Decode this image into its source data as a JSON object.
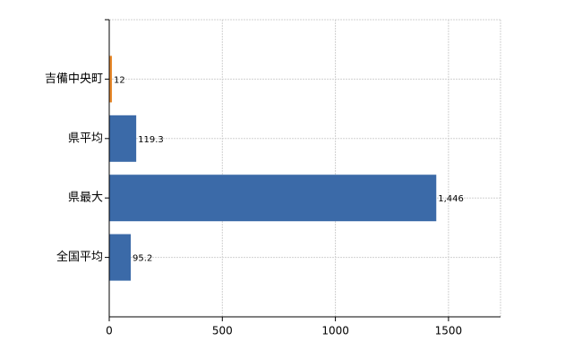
{
  "chart_data": {
    "type": "barh",
    "categories": [
      "吉備中央町",
      "県平均",
      "県最大",
      "全国平均"
    ],
    "values": [
      12,
      119.3,
      1446,
      95.2
    ],
    "value_labels": [
      "12",
      "119.3",
      "1,446",
      "95.2"
    ],
    "colors": [
      "#e8892b",
      "#3b6aa8",
      "#3b6aa8",
      "#3b6aa8"
    ],
    "xlim": [
      0,
      1730
    ],
    "xticks": [
      0,
      500,
      1000,
      1500
    ],
    "grid": true
  }
}
